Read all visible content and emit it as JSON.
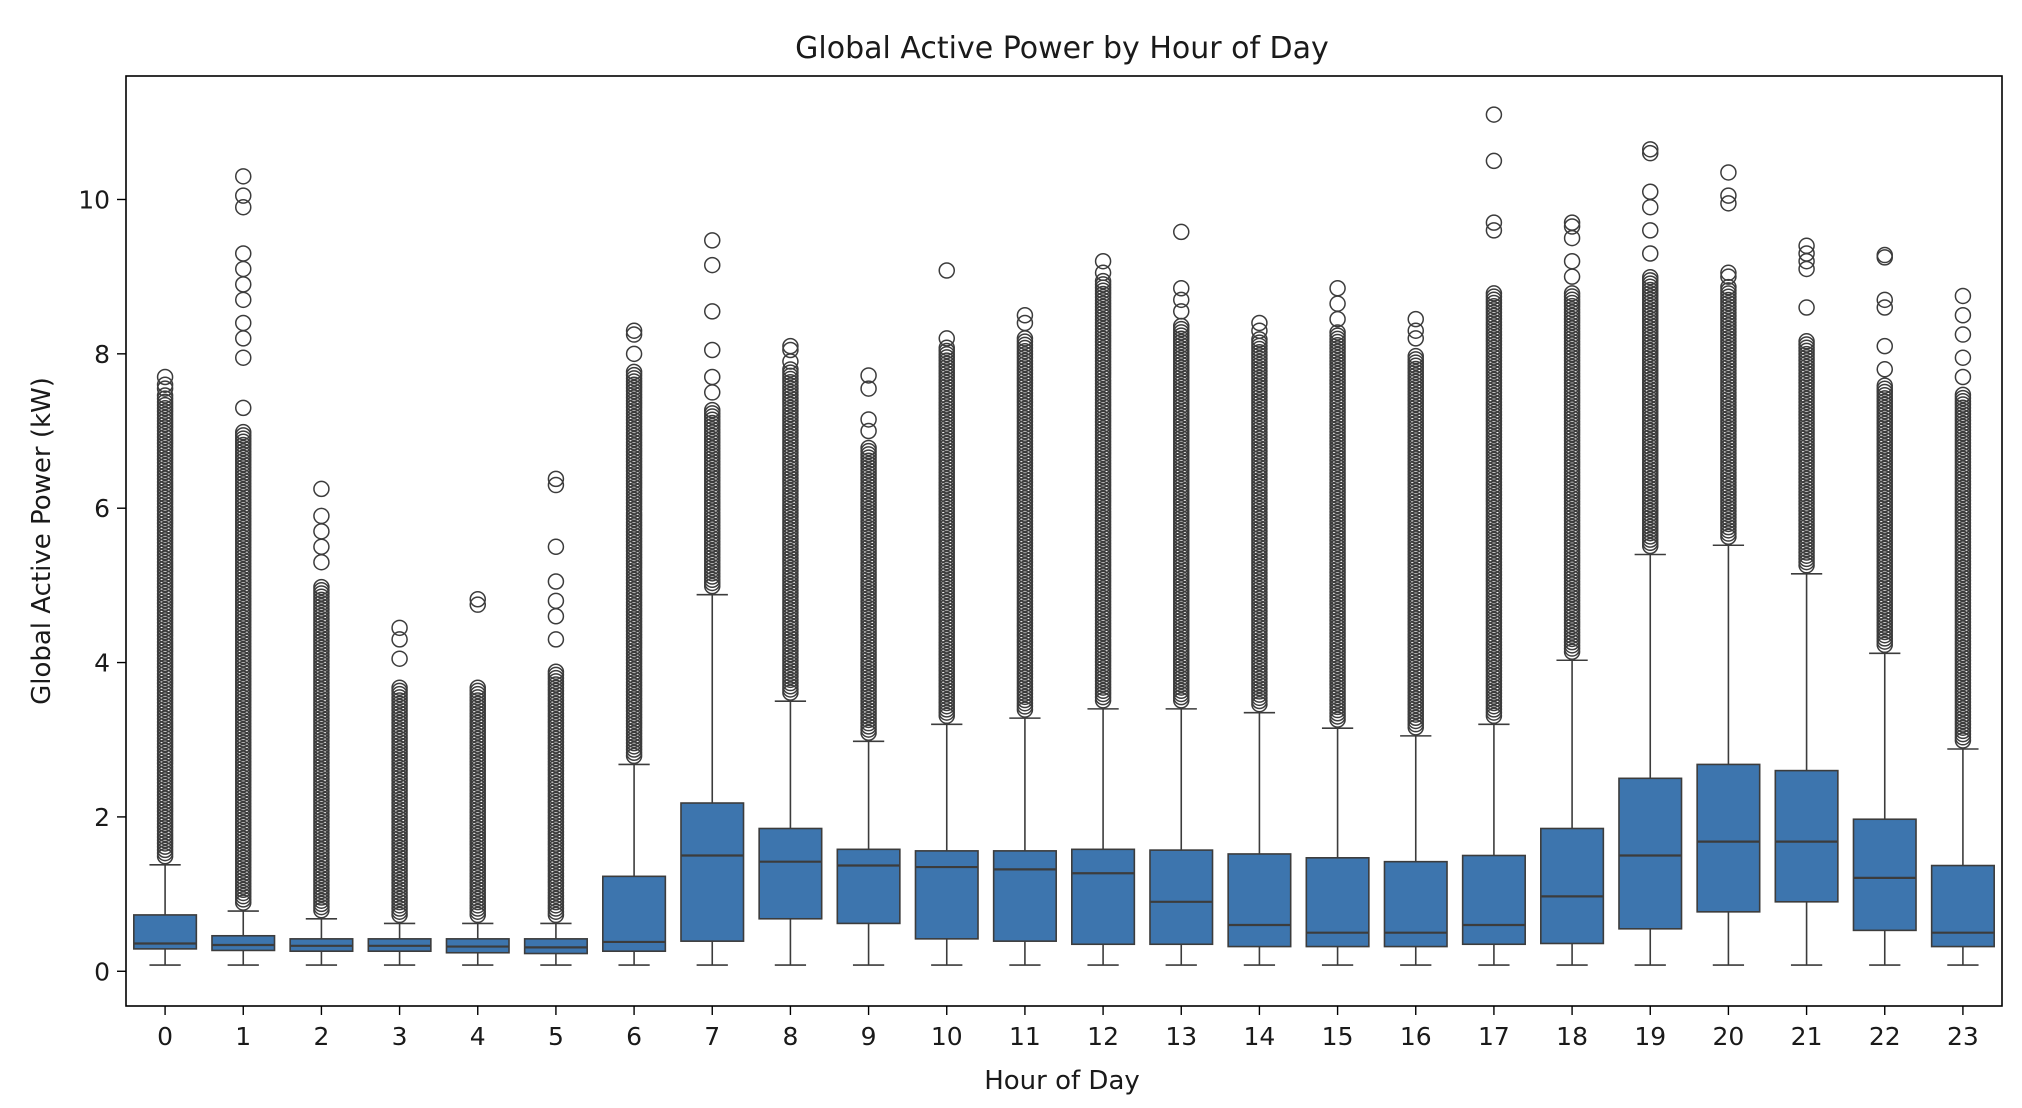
{
  "chart_data": {
    "type": "box",
    "title": "Global Active Power by Hour of Day",
    "xlabel": "Hour of Day",
    "ylabel": "Global Active Power (kW)",
    "ylim": [
      -0.45,
      11.6
    ],
    "yticks": [
      0,
      2,
      4,
      6,
      8,
      10
    ],
    "box_color": "#3d75ae",
    "line_color": "#3c3c3c",
    "grid": false,
    "categories": [
      "0",
      "1",
      "2",
      "3",
      "4",
      "5",
      "6",
      "7",
      "8",
      "9",
      "10",
      "11",
      "12",
      "13",
      "14",
      "15",
      "16",
      "17",
      "18",
      "19",
      "20",
      "21",
      "22",
      "23"
    ],
    "boxes": [
      {
        "whislo": 0.08,
        "q1": 0.29,
        "med": 0.36,
        "q3": 0.73,
        "whishi": 1.38,
        "flier_dense_to": 7.5,
        "fliers_high": [
          7.55,
          7.6,
          7.7
        ]
      },
      {
        "whislo": 0.08,
        "q1": 0.27,
        "med": 0.34,
        "q3": 0.46,
        "whishi": 0.78,
        "flier_dense_to": 7.0,
        "fliers_high": [
          7.3,
          7.95,
          8.2,
          8.4,
          8.7,
          8.9,
          9.1,
          9.3,
          9.9,
          10.05,
          10.3
        ]
      },
      {
        "whislo": 0.08,
        "q1": 0.26,
        "med": 0.33,
        "q3": 0.42,
        "whishi": 0.68,
        "flier_dense_to": 5.0,
        "fliers_high": [
          5.3,
          5.5,
          5.7,
          5.9,
          6.25
        ]
      },
      {
        "whislo": 0.08,
        "q1": 0.26,
        "med": 0.33,
        "q3": 0.42,
        "whishi": 0.62,
        "flier_dense_to": 3.7,
        "fliers_high": [
          4.05,
          4.3,
          4.45
        ]
      },
      {
        "whislo": 0.08,
        "q1": 0.24,
        "med": 0.32,
        "q3": 0.42,
        "whishi": 0.62,
        "flier_dense_to": 3.7,
        "fliers_high": [
          4.75,
          4.82
        ]
      },
      {
        "whislo": 0.08,
        "q1": 0.23,
        "med": 0.31,
        "q3": 0.42,
        "whishi": 0.62,
        "flier_dense_to": 3.9,
        "fliers_high": [
          4.3,
          4.6,
          4.8,
          5.05,
          5.5,
          6.3,
          6.38
        ]
      },
      {
        "whislo": 0.08,
        "q1": 0.26,
        "med": 0.38,
        "q3": 1.23,
        "whishi": 2.68,
        "flier_dense_to": 7.8,
        "fliers_high": [
          8.0,
          8.25,
          8.3
        ]
      },
      {
        "whislo": 0.08,
        "q1": 0.39,
        "med": 1.5,
        "q3": 2.18,
        "whishi": 4.88,
        "flier_dense_to": 7.3,
        "fliers_high": [
          7.5,
          7.7,
          8.05,
          8.55,
          9.15,
          9.47
        ]
      },
      {
        "whislo": 0.08,
        "q1": 0.68,
        "med": 1.42,
        "q3": 1.85,
        "whishi": 3.5,
        "flier_dense_to": 7.8,
        "fliers_high": [
          7.9,
          8.05,
          8.1
        ]
      },
      {
        "whislo": 0.08,
        "q1": 0.62,
        "med": 1.37,
        "q3": 1.58,
        "whishi": 2.98,
        "flier_dense_to": 6.8,
        "fliers_high": [
          7.0,
          7.15,
          7.55,
          7.72
        ]
      },
      {
        "whislo": 0.08,
        "q1": 0.42,
        "med": 1.35,
        "q3": 1.56,
        "whishi": 3.2,
        "flier_dense_to": 8.1,
        "fliers_high": [
          8.2,
          9.08
        ]
      },
      {
        "whislo": 0.08,
        "q1": 0.39,
        "med": 1.32,
        "q3": 1.56,
        "whishi": 3.28,
        "flier_dense_to": 8.2,
        "fliers_high": [
          8.4,
          8.5
        ]
      },
      {
        "whislo": 0.08,
        "q1": 0.35,
        "med": 1.27,
        "q3": 1.58,
        "whishi": 3.4,
        "flier_dense_to": 8.95,
        "fliers_high": [
          9.05,
          9.2
        ]
      },
      {
        "whislo": 0.08,
        "q1": 0.35,
        "med": 0.9,
        "q3": 1.57,
        "whishi": 3.4,
        "flier_dense_to": 8.4,
        "fliers_high": [
          8.55,
          8.7,
          8.85,
          9.58
        ]
      },
      {
        "whislo": 0.08,
        "q1": 0.32,
        "med": 0.6,
        "q3": 1.52,
        "whishi": 3.35,
        "flier_dense_to": 8.2,
        "fliers_high": [
          8.3,
          8.4
        ]
      },
      {
        "whislo": 0.08,
        "q1": 0.32,
        "med": 0.5,
        "q3": 1.47,
        "whishi": 3.15,
        "flier_dense_to": 8.3,
        "fliers_high": [
          8.45,
          8.65,
          8.85
        ]
      },
      {
        "whislo": 0.08,
        "q1": 0.32,
        "med": 0.5,
        "q3": 1.42,
        "whishi": 3.05,
        "flier_dense_to": 8.0,
        "fliers_high": [
          8.2,
          8.3,
          8.45
        ]
      },
      {
        "whislo": 0.08,
        "q1": 0.35,
        "med": 0.6,
        "q3": 1.5,
        "whishi": 3.2,
        "flier_dense_to": 8.8,
        "fliers_high": [
          9.6,
          9.7,
          10.5,
          11.1
        ]
      },
      {
        "whislo": 0.08,
        "q1": 0.36,
        "med": 0.97,
        "q3": 1.85,
        "whishi": 4.03,
        "flier_dense_to": 8.8,
        "fliers_high": [
          9.0,
          9.2,
          9.5,
          9.65,
          9.7
        ]
      },
      {
        "whislo": 0.08,
        "q1": 0.55,
        "med": 1.5,
        "q3": 2.5,
        "whishi": 5.4,
        "flier_dense_to": 9.0,
        "fliers_high": [
          9.3,
          9.6,
          9.9,
          10.1,
          10.6,
          10.65
        ]
      },
      {
        "whislo": 0.08,
        "q1": 0.77,
        "med": 1.68,
        "q3": 2.68,
        "whishi": 5.52,
        "flier_dense_to": 8.9,
        "fliers_high": [
          9.0,
          9.05,
          9.95,
          10.05,
          10.35
        ]
      },
      {
        "whislo": 0.08,
        "q1": 0.9,
        "med": 1.68,
        "q3": 2.6,
        "whishi": 5.15,
        "flier_dense_to": 8.2,
        "fliers_high": [
          8.6,
          9.1,
          9.2,
          9.3,
          9.4
        ]
      },
      {
        "whislo": 0.08,
        "q1": 0.53,
        "med": 1.21,
        "q3": 1.97,
        "whishi": 4.12,
        "flier_dense_to": 7.6,
        "fliers_high": [
          7.8,
          8.1,
          8.6,
          8.7,
          9.25,
          9.28
        ]
      },
      {
        "whislo": 0.08,
        "q1": 0.32,
        "med": 0.5,
        "q3": 1.37,
        "whishi": 2.88,
        "flier_dense_to": 7.5,
        "fliers_high": [
          7.7,
          7.95,
          8.25,
          8.5,
          8.75
        ]
      }
    ]
  }
}
